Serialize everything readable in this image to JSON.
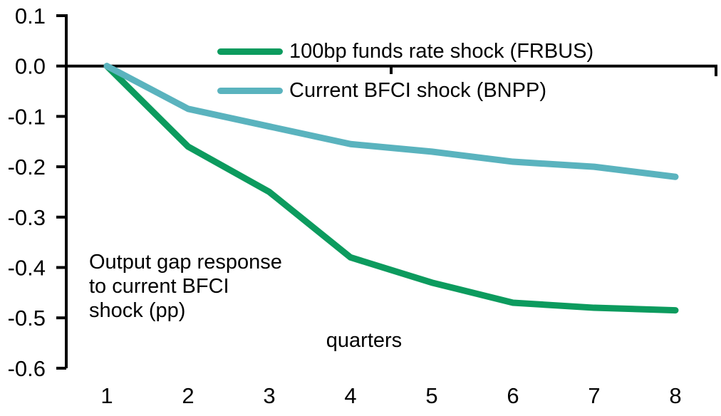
{
  "chart_data": {
    "type": "line",
    "categories": [
      "1",
      "2",
      "3",
      "4",
      "5",
      "6",
      "7",
      "8"
    ],
    "series": [
      {
        "name": "100bp funds rate shock (FRBUS)",
        "color": "#0c9b5e",
        "values": [
          0.0,
          -0.16,
          -0.25,
          -0.38,
          -0.43,
          -0.47,
          -0.48,
          -0.485
        ]
      },
      {
        "name": "Current BFCI shock (BNPP)",
        "color": "#5ab3be",
        "values": [
          0.0,
          -0.085,
          -0.12,
          -0.155,
          -0.17,
          -0.19,
          -0.2,
          -0.22
        ]
      }
    ],
    "title": "",
    "xlabel": "quarters",
    "ylabel": "",
    "ylim": [
      -0.6,
      0.1
    ],
    "ytick_labels": [
      "0.1",
      "0.0",
      "-0.1",
      "-0.2",
      "-0.3",
      "-0.4",
      "-0.5",
      "-0.6"
    ],
    "grid": false,
    "legend_position": "inside-top-center",
    "axis_color": "#000000",
    "annotation_lines": [
      "Output gap response",
      "to current BFCI",
      "shock (pp)"
    ]
  }
}
